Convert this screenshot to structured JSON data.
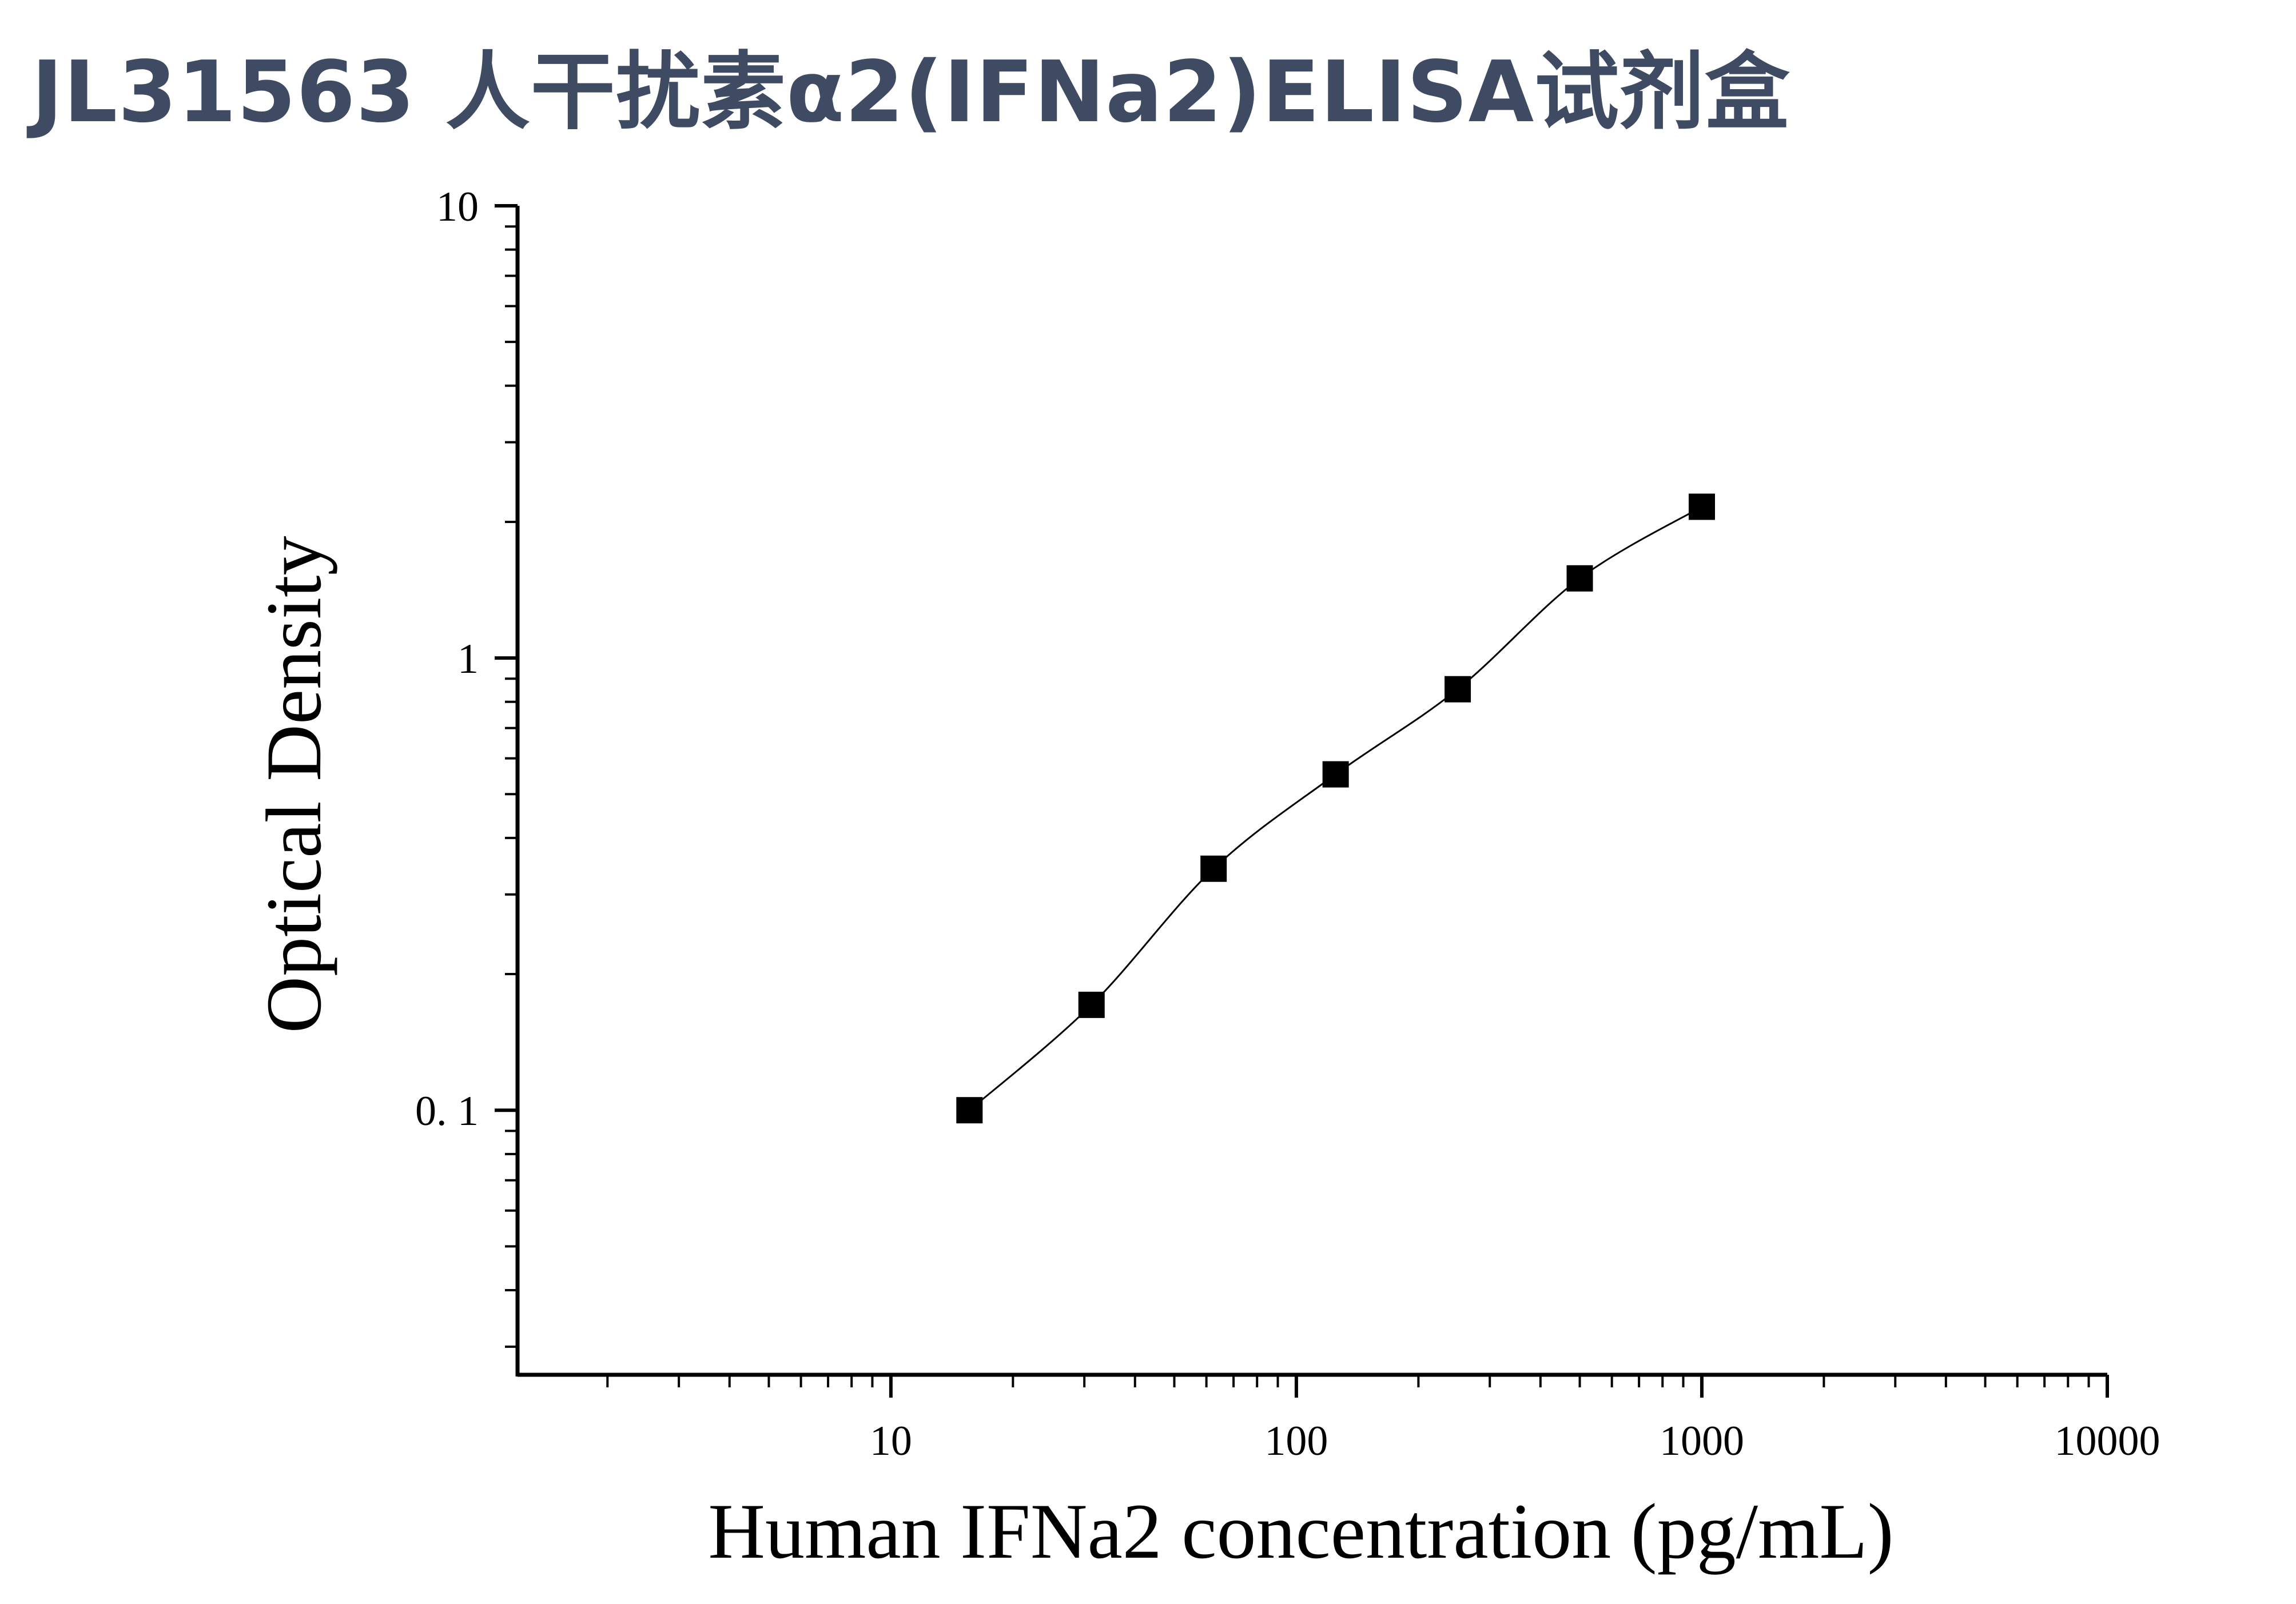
{
  "title": "JL31563 人干扰素α2(IFNa2)ELISA试剂盒",
  "colors": {
    "title": "#3f4a63",
    "axis": "#000000",
    "marker": "#000000",
    "curve": "#000000"
  },
  "chart_data": {
    "type": "scatter",
    "title": "",
    "xlabel": "Human IFNa2 concentration (pg/mL)",
    "ylabel": "Optical Density",
    "x_scale": "log",
    "y_scale": "log",
    "xlim": [
      1.2,
      10000
    ],
    "ylim": [
      0.026,
      10
    ],
    "x_tick_labels": [
      {
        "value": 10,
        "label": "10"
      },
      {
        "value": 100,
        "label": "100"
      },
      {
        "value": 1000,
        "label": "1000"
      },
      {
        "value": 10000,
        "label": "10000"
      }
    ],
    "y_tick_labels": [
      {
        "value": 0.1,
        "label": "0. 1"
      },
      {
        "value": 1,
        "label": "1"
      },
      {
        "value": 10,
        "label": "10"
      }
    ],
    "grid": false,
    "series": [
      {
        "marker": "square",
        "fit_curve": true,
        "x": [
          15.625,
          31.25,
          62.5,
          125,
          250,
          500,
          1000
        ],
        "y": [
          0.1,
          0.171,
          0.342,
          0.553,
          0.853,
          1.5,
          2.16
        ]
      }
    ]
  }
}
